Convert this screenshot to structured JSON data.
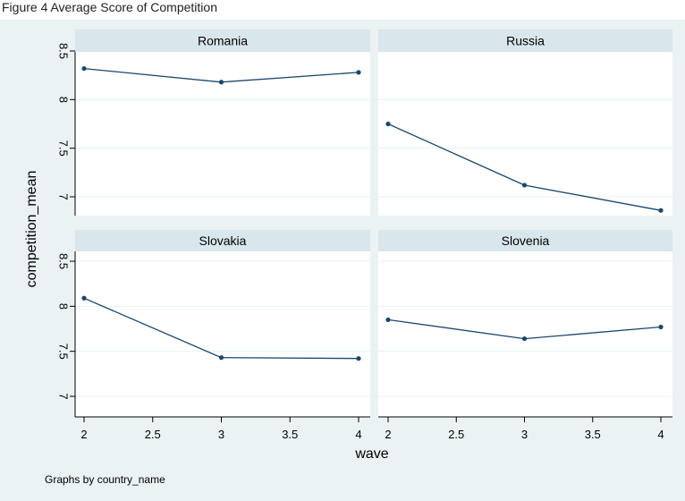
{
  "page": {
    "top_caption": "Figure 4 Average Score of Competition"
  },
  "colors": {
    "background": "#EAF2F3",
    "panel": "#FFFFFF",
    "strip": "#D9E6EB",
    "line": "#1A476F",
    "grid": "#EAF2F3",
    "text": "#000000"
  },
  "chart_data": {
    "type": "line",
    "ylabel": "competition_mean",
    "xlabel": "wave",
    "note": "Graphs by country_name",
    "xlim": [
      2,
      4
    ],
    "ylim": [
      6.78,
      8.6
    ],
    "xticks": [
      "2",
      "2.5",
      "3",
      "3.5",
      "4"
    ],
    "yticks": [
      "7",
      "7.5",
      "8",
      "8.5"
    ],
    "grid": true,
    "panels": [
      {
        "name": "Romania",
        "x": [
          2,
          3,
          4
        ],
        "y": [
          8.32,
          8.18,
          8.28
        ]
      },
      {
        "name": "Russia",
        "x": [
          2,
          3,
          4
        ],
        "y": [
          7.75,
          7.12,
          6.86
        ]
      },
      {
        "name": "Slovakia",
        "x": [
          2,
          3,
          4
        ],
        "y": [
          8.09,
          7.43,
          7.42
        ]
      },
      {
        "name": "Slovenia",
        "x": [
          2,
          3,
          4
        ],
        "y": [
          7.85,
          7.64,
          7.77
        ]
      }
    ]
  }
}
